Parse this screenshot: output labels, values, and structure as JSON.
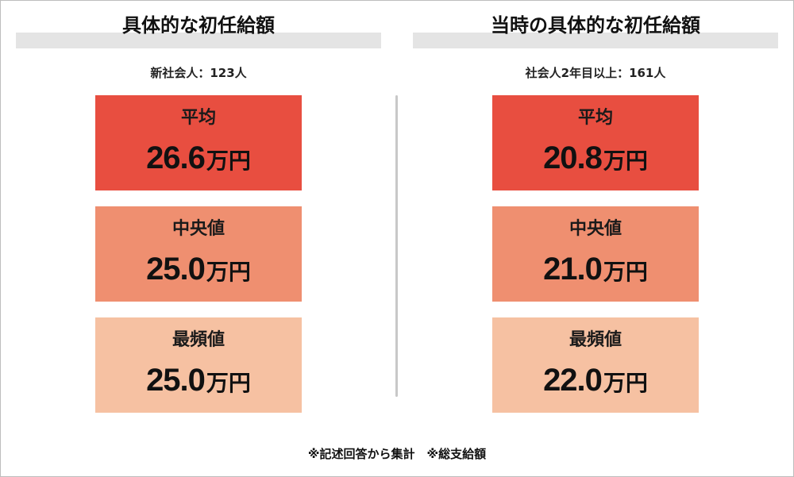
{
  "colors": {
    "card_average": "#e84e40",
    "card_median": "#ef8f70",
    "card_mode": "#f6c1a2",
    "title_band": "#e4e4e4",
    "divider": "#c8c8c8"
  },
  "panels": [
    {
      "title": "具体的な初任給額",
      "sample": "新社会人：123人",
      "cards": [
        {
          "label": "平均",
          "value": "26.6",
          "unit": "万円"
        },
        {
          "label": "中央値",
          "value": "25.0",
          "unit": "万円"
        },
        {
          "label": "最頻値",
          "value": "25.0",
          "unit": "万円"
        }
      ]
    },
    {
      "title": "当時の具体的な初任給額",
      "sample": "社会人2年目以上：161人",
      "cards": [
        {
          "label": "平均",
          "value": "20.8",
          "unit": "万円"
        },
        {
          "label": "中央値",
          "value": "21.0",
          "unit": "万円"
        },
        {
          "label": "最頻値",
          "value": "22.0",
          "unit": "万円"
        }
      ]
    }
  ],
  "footnote": "※記述回答から集計　※総支給額"
}
